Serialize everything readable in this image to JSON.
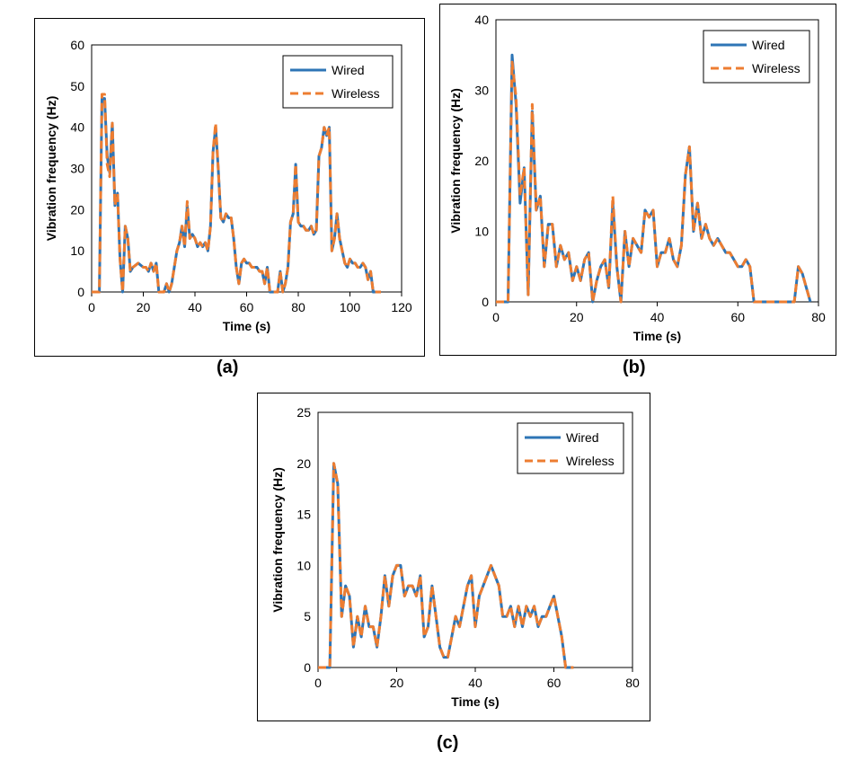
{
  "captions": [
    "(a)",
    "(b)",
    "(c)"
  ],
  "colors": {
    "wired": "#2E75B6",
    "wireless": "#ED7D31",
    "frame": "#000000"
  },
  "chart_data": [
    {
      "type": "line",
      "xlabel": "Time (s)",
      "ylabel": "Vibration frequency (Hz)",
      "xlim": [
        0,
        120
      ],
      "ylim": [
        0,
        60
      ],
      "xticks": [
        0,
        20,
        40,
        60,
        80,
        100,
        120
      ],
      "yticks": [
        0,
        10,
        20,
        30,
        40,
        50,
        60
      ],
      "legend": "top-right",
      "x": [
        0,
        2,
        3,
        4,
        5,
        6,
        7,
        8,
        9,
        10,
        11,
        12,
        13,
        14,
        15,
        16,
        18,
        20,
        21,
        22,
        23,
        24,
        25,
        26,
        27,
        28,
        29,
        30,
        31,
        32,
        33,
        34,
        35,
        36,
        37,
        38,
        39,
        40,
        41,
        42,
        43,
        44,
        45,
        46,
        47,
        48,
        49,
        50,
        51,
        52,
        53,
        54,
        55,
        56,
        57,
        58,
        59,
        60,
        61,
        62,
        63,
        64,
        65,
        66,
        67,
        68,
        69,
        70,
        71,
        72,
        73,
        74,
        75,
        76,
        77,
        78,
        79,
        80,
        81,
        82,
        83,
        84,
        85,
        86,
        87,
        88,
        89,
        90,
        91,
        92,
        93,
        94,
        95,
        96,
        97,
        98,
        99,
        100,
        101,
        102,
        103,
        104,
        105,
        106,
        107,
        108,
        109,
        110,
        111,
        112
      ],
      "series": [
        {
          "name": "Wired",
          "values": [
            0,
            0,
            0,
            47,
            47,
            33,
            29,
            41,
            21,
            24,
            8,
            0,
            16,
            13,
            5,
            6,
            7,
            6,
            6,
            5,
            7,
            5,
            7,
            0,
            0,
            0,
            2,
            0,
            2,
            6,
            10,
            12,
            16,
            11,
            21,
            13,
            14,
            13,
            11,
            12,
            11,
            12,
            10,
            16,
            34,
            40,
            30,
            18,
            17,
            19,
            18,
            18,
            13,
            6,
            2,
            7,
            8,
            7,
            7,
            6,
            6,
            6,
            5,
            5,
            2,
            6,
            0,
            0,
            0,
            0,
            5,
            0,
            2,
            6,
            17,
            19,
            31,
            17,
            16,
            16,
            15,
            15,
            16,
            14,
            15,
            33,
            35,
            40,
            38,
            40,
            10,
            13,
            19,
            13,
            10,
            7,
            6,
            8,
            7,
            7,
            6,
            6,
            7,
            6,
            3,
            5,
            0,
            0,
            0,
            0
          ]
        },
        {
          "name": "Wireless",
          "values": [
            0,
            0,
            0,
            48,
            48,
            31,
            28,
            41,
            21,
            24,
            8,
            0,
            16,
            13,
            5,
            6,
            7,
            6,
            6,
            5,
            7,
            5,
            7,
            0,
            0,
            0,
            2,
            0,
            2,
            6,
            10,
            12,
            16,
            11,
            22,
            13,
            14,
            13,
            11,
            12,
            11,
            12,
            10,
            16,
            34,
            41,
            30,
            18,
            17,
            19,
            18,
            18,
            13,
            6,
            2,
            7,
            8,
            7,
            7,
            6,
            6,
            6,
            5,
            5,
            2,
            6,
            0,
            0,
            0,
            0,
            5,
            0,
            2,
            6,
            17,
            19,
            31,
            17,
            16,
            16,
            15,
            15,
            16,
            14,
            15,
            33,
            35,
            40,
            38,
            40,
            10,
            13,
            19,
            13,
            10,
            7,
            6,
            8,
            7,
            7,
            6,
            6,
            7,
            6,
            3,
            5,
            0,
            0,
            0,
            0
          ]
        }
      ]
    },
    {
      "type": "line",
      "xlabel": "Time (s)",
      "ylabel": "Vibration frequency (Hz)",
      "xlim": [
        0,
        80
      ],
      "ylim": [
        0,
        40
      ],
      "xticks": [
        0,
        20,
        40,
        60,
        80
      ],
      "yticks": [
        0,
        10,
        20,
        30,
        40
      ],
      "legend": "top-right",
      "x": [
        0,
        2,
        3,
        4,
        5,
        6,
        7,
        8,
        9,
        10,
        11,
        12,
        13,
        14,
        15,
        16,
        17,
        18,
        19,
        20,
        21,
        22,
        23,
        24,
        25,
        26,
        27,
        28,
        29,
        30,
        31,
        32,
        33,
        34,
        35,
        36,
        37,
        38,
        39,
        40,
        41,
        42,
        43,
        44,
        45,
        46,
        47,
        48,
        49,
        50,
        51,
        52,
        53,
        54,
        55,
        56,
        57,
        58,
        59,
        60,
        61,
        62,
        63,
        64,
        65,
        66,
        67,
        68,
        69,
        70,
        71,
        72,
        73,
        74,
        75,
        76,
        77,
        78
      ],
      "series": [
        {
          "name": "Wired",
          "values": [
            0,
            0,
            0,
            35,
            28,
            14,
            19,
            1,
            27,
            13,
            15,
            5,
            11,
            11,
            5,
            8,
            6,
            7,
            3,
            5,
            3,
            6,
            7,
            0,
            3,
            5,
            6,
            2,
            14,
            5,
            0,
            10,
            5,
            9,
            8,
            7,
            13,
            12,
            13,
            5,
            7,
            7,
            9,
            6,
            5,
            8,
            18,
            22,
            10,
            14,
            9,
            11,
            9,
            8,
            9,
            8,
            7,
            7,
            6,
            5,
            5,
            6,
            5,
            0,
            0,
            0,
            0,
            0,
            0,
            0,
            0,
            0,
            0,
            0,
            5,
            4,
            2,
            0
          ]
        },
        {
          "name": "Wireless",
          "values": [
            0,
            0,
            0,
            34,
            29,
            15,
            19,
            1,
            28,
            13,
            15,
            5,
            11,
            11,
            5,
            8,
            6,
            7,
            3,
            5,
            3,
            6,
            7,
            0,
            3,
            5,
            6,
            2,
            15,
            5,
            0,
            10,
            5,
            9,
            8,
            7,
            13,
            12,
            13,
            5,
            7,
            7,
            9,
            6,
            5,
            8,
            18,
            22,
            10,
            14,
            9,
            11,
            9,
            8,
            9,
            8,
            7,
            7,
            6,
            5,
            5,
            6,
            5,
            0,
            0,
            0,
            0,
            0,
            0,
            0,
            0,
            0,
            0,
            0,
            5,
            4,
            2,
            0
          ]
        }
      ]
    },
    {
      "type": "line",
      "xlabel": "Time (s)",
      "ylabel": "Vibration frequency (Hz)",
      "xlim": [
        0,
        80
      ],
      "ylim": [
        0,
        25
      ],
      "xticks": [
        0,
        20,
        40,
        60,
        80
      ],
      "yticks": [
        0,
        5,
        10,
        15,
        20,
        25
      ],
      "legend": "top-right",
      "x": [
        0,
        2,
        3,
        4,
        5,
        6,
        7,
        8,
        9,
        10,
        11,
        12,
        13,
        14,
        15,
        16,
        17,
        18,
        19,
        20,
        21,
        22,
        23,
        24,
        25,
        26,
        27,
        28,
        29,
        30,
        31,
        32,
        33,
        34,
        35,
        36,
        37,
        38,
        39,
        40,
        41,
        42,
        43,
        44,
        45,
        46,
        47,
        48,
        49,
        50,
        51,
        52,
        53,
        54,
        55,
        56,
        57,
        58,
        59,
        60,
        61,
        62,
        63,
        64,
        65
      ],
      "series": [
        {
          "name": "Wired",
          "values": [
            0,
            0,
            0,
            20,
            18,
            5,
            8,
            7,
            2,
            5,
            3,
            6,
            4,
            4,
            2,
            5,
            9,
            6,
            9,
            10,
            10,
            7,
            8,
            8,
            7,
            9,
            3,
            4,
            8,
            5,
            2,
            1,
            1,
            3,
            5,
            4,
            6,
            8,
            9,
            4,
            7,
            8,
            9,
            10,
            9,
            8,
            5,
            5,
            6,
            4,
            6,
            4,
            6,
            5,
            6,
            4,
            5,
            5,
            6,
            7,
            5,
            3,
            0,
            0,
            0
          ]
        },
        {
          "name": "Wireless",
          "values": [
            0,
            0,
            0,
            20,
            18,
            5,
            8,
            7,
            2,
            5,
            3,
            6,
            4,
            4,
            2,
            5,
            9,
            6,
            9,
            10,
            10,
            7,
            8,
            8,
            7,
            9,
            3,
            4,
            8,
            5,
            2,
            1,
            1,
            3,
            5,
            4,
            6,
            8,
            9,
            4,
            7,
            8,
            9,
            10,
            9,
            8,
            5,
            5,
            6,
            4,
            6,
            4,
            6,
            5,
            6,
            4,
            5,
            5,
            6,
            7,
            5,
            3,
            0,
            0,
            0
          ]
        }
      ]
    }
  ]
}
